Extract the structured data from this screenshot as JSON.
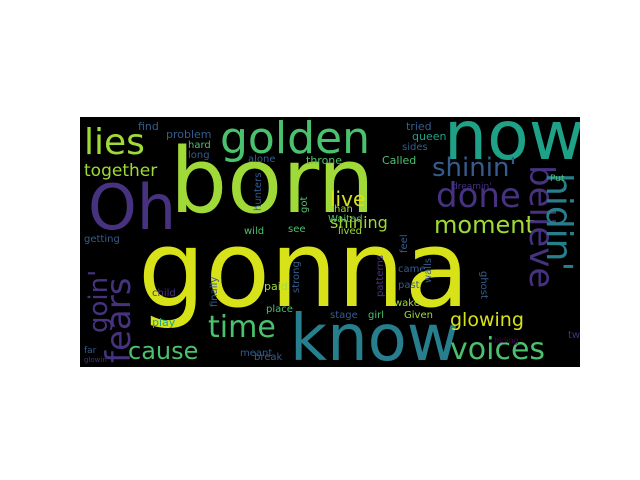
{
  "palette": {
    "yellow": "#d8e219",
    "lime": "#a0da39",
    "green": "#4ac16d",
    "teal": "#1fa187",
    "cyan": "#277f8e",
    "blue": "#365c8d",
    "indigo": "#46327e",
    "purple": "#440154"
  },
  "words": [
    {
      "id": "gonna",
      "text": "gonna",
      "color": "yellow"
    },
    {
      "id": "born",
      "text": "born",
      "color": "lime"
    },
    {
      "id": "now",
      "text": "now",
      "color": "teal"
    },
    {
      "id": "know",
      "text": "know",
      "color": "cyan"
    },
    {
      "id": "oh",
      "text": "Oh",
      "color": "indigo"
    },
    {
      "id": "golden",
      "text": "golden",
      "color": "green"
    },
    {
      "id": "lies",
      "text": "lies",
      "color": "lime"
    },
    {
      "id": "fears",
      "text": "fears",
      "color": "indigo"
    },
    {
      "id": "goin",
      "text": "goin'",
      "color": "indigo"
    },
    {
      "id": "together",
      "text": "together",
      "color": "lime"
    },
    {
      "id": "cause",
      "text": "cause",
      "color": "green"
    },
    {
      "id": "time",
      "text": "time",
      "color": "green"
    },
    {
      "id": "voices",
      "text": "voices",
      "color": "green"
    },
    {
      "id": "done",
      "text": "done",
      "color": "indigo"
    },
    {
      "id": "shinin",
      "text": "shinin'",
      "color": "blue"
    },
    {
      "id": "moment",
      "text": "moment",
      "color": "lime"
    },
    {
      "id": "believe",
      "text": "believe",
      "color": "indigo"
    },
    {
      "id": "hidin",
      "text": "hidin'",
      "color": "cyan"
    },
    {
      "id": "glowing",
      "text": "glowing",
      "color": "yellow"
    },
    {
      "id": "live",
      "text": "live",
      "color": "yellow"
    },
    {
      "id": "shining",
      "text": "shining",
      "color": "lime"
    },
    {
      "id": "find",
      "text": "find",
      "color": "blue"
    },
    {
      "id": "problem",
      "text": "problem",
      "color": "blue"
    },
    {
      "id": "hard",
      "text": "hard",
      "color": "green"
    },
    {
      "id": "long",
      "text": "long",
      "color": "blue"
    },
    {
      "id": "alone",
      "text": "alone",
      "color": "blue"
    },
    {
      "id": "throne",
      "text": "throne",
      "color": "green"
    },
    {
      "id": "called",
      "text": "Called",
      "color": "green"
    },
    {
      "id": "tried",
      "text": "tried",
      "color": "blue"
    },
    {
      "id": "queen",
      "text": "queen",
      "color": "teal"
    },
    {
      "id": "sides",
      "text": "sides",
      "color": "blue"
    },
    {
      "id": "put",
      "text": "Put",
      "color": "green"
    },
    {
      "id": "dreamin",
      "text": "dreamin'",
      "color": "indigo"
    },
    {
      "id": "hunters",
      "text": "hunters",
      "color": "blue"
    },
    {
      "id": "got",
      "text": "got",
      "color": "green"
    },
    {
      "id": "hah",
      "text": "hah",
      "color": "lime"
    },
    {
      "id": "waited",
      "text": "Waited",
      "color": "green"
    },
    {
      "id": "lived",
      "text": "lived",
      "color": "lime"
    },
    {
      "id": "see",
      "text": "see",
      "color": "green"
    },
    {
      "id": "wild",
      "text": "wild",
      "color": "green"
    },
    {
      "id": "getting",
      "text": "getting",
      "color": "blue"
    },
    {
      "id": "feel",
      "text": "feel",
      "color": "blue"
    },
    {
      "id": "walls",
      "text": "walls",
      "color": "blue"
    },
    {
      "id": "ghost",
      "text": "ghost",
      "color": "blue"
    },
    {
      "id": "came",
      "text": "came",
      "color": "blue"
    },
    {
      "id": "patterns",
      "text": "patterns",
      "color": "indigo"
    },
    {
      "id": "past",
      "text": "past",
      "color": "blue"
    },
    {
      "id": "wake",
      "text": "wake",
      "color": "lime"
    },
    {
      "id": "paid",
      "text": "paid",
      "color": "lime"
    },
    {
      "id": "place",
      "text": "place",
      "color": "green"
    },
    {
      "id": "strong",
      "text": "strong",
      "color": "blue"
    },
    {
      "id": "finally",
      "text": "finally",
      "color": "blue"
    },
    {
      "id": "child",
      "text": "child",
      "color": "indigo"
    },
    {
      "id": "play",
      "text": "play",
      "color": "teal"
    },
    {
      "id": "stage",
      "text": "stage",
      "color": "blue"
    },
    {
      "id": "girl",
      "text": "girl",
      "color": "green"
    },
    {
      "id": "given",
      "text": "Given",
      "color": "lime"
    },
    {
      "id": "hiding",
      "text": "hiding",
      "color": "purple"
    },
    {
      "id": "two",
      "text": "two",
      "color": "indigo"
    },
    {
      "id": "far",
      "text": "far",
      "color": "blue"
    },
    {
      "id": "meant",
      "text": "meant",
      "color": "blue"
    },
    {
      "id": "break",
      "text": "break",
      "color": "blue"
    },
    {
      "id": "glowin",
      "text": "glowin'",
      "color": "indigo"
    }
  ]
}
